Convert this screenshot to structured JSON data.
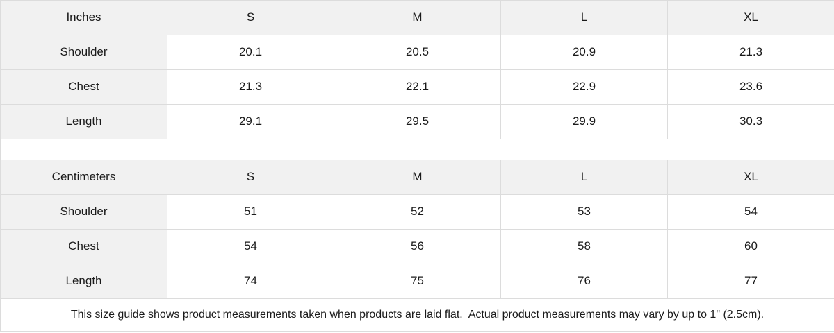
{
  "colors": {
    "header_bg": "#f1f1f1",
    "cell_bg": "#ffffff",
    "border": "#dcdcdc",
    "text": "#1a1a1a"
  },
  "tables": [
    {
      "unit_label": "Inches",
      "size_headers": [
        "S",
        "M",
        "L",
        "XL"
      ],
      "rows": [
        {
          "label": "Shoulder",
          "values": [
            "20.1",
            "20.5",
            "20.9",
            "21.3"
          ]
        },
        {
          "label": "Chest",
          "values": [
            "21.3",
            "22.1",
            "22.9",
            "23.6"
          ]
        },
        {
          "label": "Length",
          "values": [
            "29.1",
            "29.5",
            "29.9",
            "30.3"
          ]
        }
      ]
    },
    {
      "unit_label": "Centimeters",
      "size_headers": [
        "S",
        "M",
        "L",
        "XL"
      ],
      "rows": [
        {
          "label": "Shoulder",
          "values": [
            "51",
            "52",
            "53",
            "54"
          ]
        },
        {
          "label": "Chest",
          "values": [
            "54",
            "56",
            "58",
            "60"
          ]
        },
        {
          "label": "Length",
          "values": [
            "74",
            "75",
            "76",
            "77"
          ]
        }
      ]
    }
  ],
  "footer": {
    "note": "This size guide shows product measurements taken when products are laid flat.  Actual product measurements may vary by up to 1\" (2.5cm)."
  }
}
